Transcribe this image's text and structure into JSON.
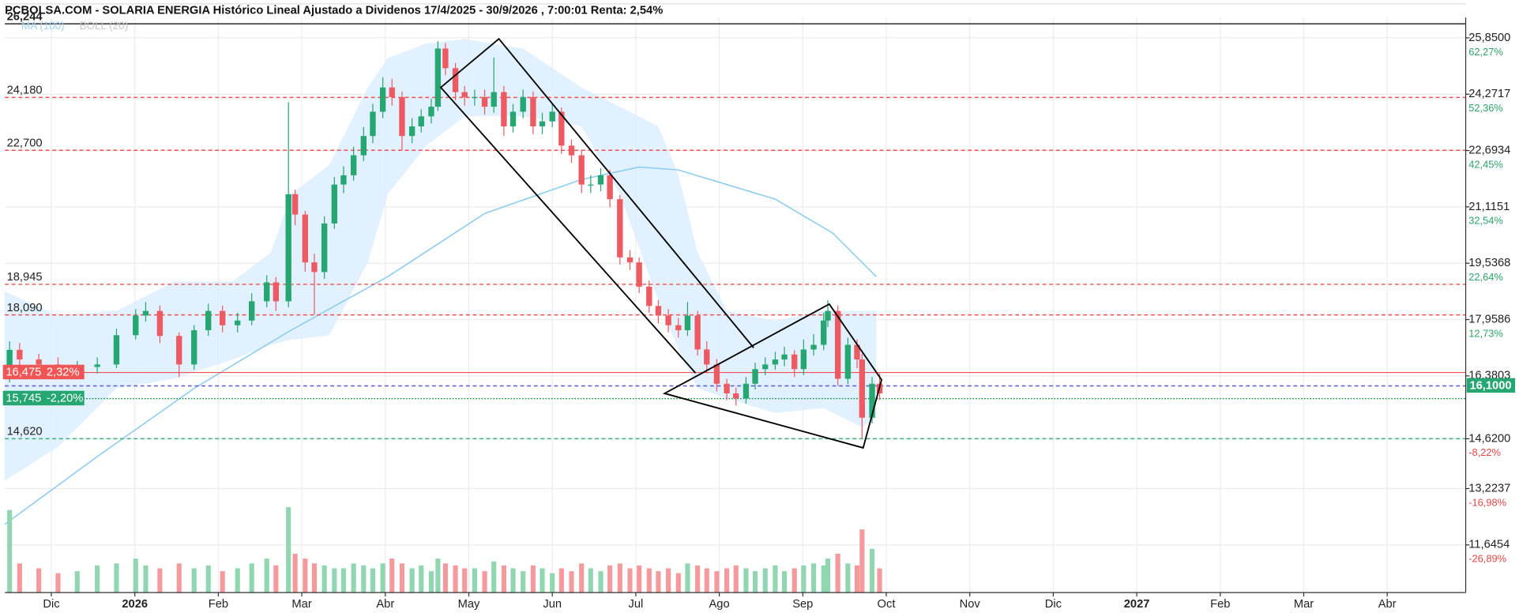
{
  "chart_data": {
    "type": "candlestick",
    "title": "PCBOLSA.COM - SOLARIA ENERGIA Histórico Lineal Ajustado a Dividenos 17/4/2025 - 30/9/2026 , 7:00:01 Renta: 2,54%",
    "indicators": [
      "MA (100)",
      "BOLL (20)"
    ],
    "xlim": [
      -0.557,
      16.94
    ],
    "xticks": [
      {
        "value": 0,
        "label": "Dic"
      },
      {
        "value": 1,
        "label": "2026"
      },
      {
        "value": 2,
        "label": "Feb"
      },
      {
        "value": 3,
        "label": "Mar"
      },
      {
        "value": 4,
        "label": "Abr"
      },
      {
        "value": 5,
        "label": "May"
      },
      {
        "value": 6,
        "label": "Jun"
      },
      {
        "value": 7,
        "label": "Jul"
      },
      {
        "value": 8,
        "label": "Ago"
      },
      {
        "value": 9,
        "label": "Sep"
      },
      {
        "value": 10,
        "label": "Oct"
      },
      {
        "value": 11,
        "label": "Nov"
      },
      {
        "value": 12,
        "label": "Dic"
      },
      {
        "value": 13,
        "label": "2027"
      },
      {
        "value": 14,
        "label": "Feb"
      },
      {
        "value": 15,
        "label": "Mar"
      },
      {
        "value": 16,
        "label": "Abr"
      }
    ],
    "ylim": [
      10.31,
      26.42
    ],
    "yticks": [
      {
        "value": 25.85,
        "label": "25,8500"
      },
      {
        "value": 24.2717,
        "label": "24,2717"
      },
      {
        "value": 22.6934,
        "label": "22,6934"
      },
      {
        "value": 21.1151,
        "label": "21,1151"
      },
      {
        "value": 19.5368,
        "label": "19,5368"
      },
      {
        "value": 17.9586,
        "label": "17,9586"
      },
      {
        "value": 16.3803,
        "label": "16,3803"
      },
      {
        "value": 14.62,
        "label": "14,6200"
      },
      {
        "value": 13.2237,
        "label": "13,2237"
      },
      {
        "value": 11.6454,
        "label": "11,6454"
      }
    ],
    "ytick_changes": [
      "62,27%",
      "52,36%",
      "42,45%",
      "32,54%",
      "22,64%",
      "12,73%",
      null,
      "-8,22%",
      "-16,98%",
      "-26,89%"
    ],
    "grid": true,
    "up_color": "#26a671",
    "down_color": "#ee5a62",
    "x": [
      -0.5,
      -0.38,
      -0.15,
      0.08,
      0.31,
      0.55,
      0.78,
      1.01,
      1.13,
      1.3,
      1.53,
      1.71,
      1.88,
      2.05,
      2.23,
      2.4,
      2.58,
      2.69,
      2.84,
      2.92,
      3.04,
      3.15,
      3.27,
      3.39,
      3.5,
      3.62,
      3.74,
      3.85,
      3.97,
      4.08,
      4.2,
      4.32,
      4.43,
      4.55,
      4.63,
      4.72,
      4.84,
      4.95,
      5.07,
      5.19,
      5.3,
      5.42,
      5.53,
      5.65,
      5.77,
      5.88,
      6.0,
      6.11,
      6.23,
      6.35,
      6.46,
      6.58,
      6.69,
      6.81,
      6.93,
      7.04,
      7.16,
      7.27,
      7.39,
      7.51,
      7.62,
      7.74,
      7.85,
      7.97,
      8.09,
      8.2,
      8.32,
      8.43,
      8.55,
      8.67,
      8.78,
      8.9,
      9.01,
      9.13,
      9.25,
      9.3,
      9.42,
      9.54,
      9.65,
      9.71,
      9.83,
      9.92
    ],
    "open": [
      16.4,
      17.11,
      16.84,
      16.7,
      16.57,
      16.63,
      16.7,
      17.52,
      18.07,
      18.2,
      17.5,
      16.7,
      17.66,
      18.2,
      17.8,
      17.93,
      18.47,
      19.0,
      18.47,
      21.47,
      20.9,
      19.56,
      19.29,
      20.65,
      21.74,
      22.0,
      22.56,
      23.1,
      23.78,
      24.46,
      24.19,
      23.1,
      23.37,
      23.65,
      23.92,
      25.55,
      25.0,
      24.33,
      24.19,
      24.19,
      23.92,
      24.33,
      23.37,
      23.78,
      24.19,
      23.37,
      23.51,
      23.78,
      22.83,
      22.56,
      21.74,
      21.74,
      22.0,
      21.33,
      19.7,
      19.56,
      18.88,
      18.34,
      18.07,
      17.8,
      17.66,
      18.07,
      17.12,
      16.7,
      16.16,
      15.89,
      15.75,
      16.16,
      16.57,
      16.7,
      16.84,
      16.98,
      16.57,
      17.12,
      17.25,
      17.93,
      18.2,
      16.3,
      17.25,
      16.84,
      15.21,
      16.16
    ],
    "high": [
      17.35,
      17.3,
      17.0,
      16.9,
      16.8,
      16.9,
      17.7,
      18.25,
      18.45,
      18.35,
      17.6,
      17.8,
      18.4,
      18.35,
      18.15,
      18.7,
      19.2,
      19.15,
      24.05,
      21.6,
      21.0,
      19.8,
      20.85,
      21.95,
      22.25,
      22.8,
      23.35,
      24.0,
      24.75,
      24.7,
      24.35,
      23.6,
      23.85,
      24.15,
      25.75,
      25.7,
      25.15,
      24.5,
      24.4,
      24.4,
      25.3,
      24.5,
      24.0,
      24.4,
      24.35,
      23.75,
      24.0,
      23.9,
      23.0,
      22.7,
      22.0,
      22.2,
      22.15,
      21.45,
      19.9,
      19.7,
      19.05,
      18.5,
      18.25,
      18.0,
      18.45,
      18.2,
      17.35,
      16.85,
      16.3,
      16.05,
      16.35,
      16.75,
      16.9,
      17.05,
      17.2,
      17.1,
      17.4,
      17.55,
      18.15,
      18.5,
      18.35,
      17.45,
      17.4,
      17.0,
      16.35,
      16.45
    ],
    "low": [
      16.2,
      16.65,
      16.5,
      16.4,
      16.4,
      16.45,
      16.6,
      17.4,
      17.9,
      17.3,
      16.35,
      16.55,
      17.5,
      17.6,
      17.6,
      17.8,
      18.3,
      18.2,
      18.3,
      20.6,
      19.3,
      18.1,
      19.1,
      20.5,
      21.5,
      21.85,
      22.4,
      22.9,
      23.6,
      23.95,
      22.7,
      22.9,
      23.2,
      23.45,
      23.8,
      24.8,
      24.1,
      23.95,
      23.95,
      23.7,
      23.75,
      23.1,
      23.2,
      23.6,
      23.15,
      23.15,
      23.35,
      22.6,
      22.35,
      21.5,
      21.5,
      21.55,
      21.1,
      19.5,
      19.35,
      18.7,
      18.15,
      17.85,
      17.6,
      17.45,
      17.5,
      16.95,
      16.45,
      15.95,
      15.7,
      15.55,
      15.6,
      16.0,
      16.4,
      16.55,
      16.65,
      16.35,
      16.4,
      16.95,
      17.1,
      17.75,
      16.1,
      16.15,
      16.6,
      14.62,
      15.05,
      15.7
    ],
    "close": [
      17.11,
      16.84,
      16.7,
      16.57,
      16.63,
      16.7,
      17.52,
      18.07,
      18.2,
      17.5,
      16.7,
      17.66,
      18.2,
      17.8,
      17.93,
      18.47,
      19.0,
      18.47,
      21.47,
      20.9,
      19.56,
      19.29,
      20.65,
      21.74,
      22.0,
      22.56,
      23.1,
      23.78,
      24.46,
      24.19,
      23.1,
      23.37,
      23.65,
      23.92,
      25.55,
      25.0,
      24.33,
      24.19,
      24.19,
      23.92,
      24.33,
      23.37,
      23.78,
      24.19,
      23.37,
      23.51,
      23.78,
      22.83,
      22.56,
      21.74,
      21.74,
      22.0,
      21.33,
      19.7,
      19.56,
      18.88,
      18.34,
      18.07,
      17.8,
      17.66,
      18.07,
      17.12,
      16.7,
      16.16,
      15.89,
      15.75,
      16.16,
      16.57,
      16.7,
      16.84,
      16.98,
      16.57,
      17.12,
      17.25,
      17.93,
      18.2,
      16.3,
      17.25,
      16.84,
      15.21,
      16.16,
      15.89
    ],
    "volume": {
      "ylim": [
        0,
        100
      ],
      "up_color": "#8fd6b1",
      "down_color": "#f4999c",
      "values": [
        85,
        30,
        25,
        20,
        22,
        28,
        30,
        35,
        28,
        25,
        30,
        25,
        28,
        22,
        25,
        30,
        35,
        28,
        88,
        40,
        35,
        30,
        28,
        25,
        25,
        30,
        28,
        25,
        30,
        35,
        30,
        25,
        28,
        22,
        35,
        30,
        28,
        25,
        25,
        22,
        32,
        28,
        25,
        22,
        28,
        25,
        20,
        25,
        22,
        30,
        25,
        22,
        28,
        30,
        25,
        28,
        25,
        22,
        25,
        20,
        30,
        28,
        25,
        22,
        25,
        28,
        25,
        22,
        25,
        28,
        22,
        25,
        28,
        30,
        28,
        35,
        40,
        30,
        28,
        65,
        45,
        25
      ]
    },
    "ma": {
      "color": "#8ecdf0",
      "x": [
        -0.56,
        0.55,
        1.71,
        2.87,
        4.03,
        5.19,
        6.35,
        7.04,
        7.51,
        8.67,
        9.36,
        9.88
      ],
      "values": [
        12.22,
        14.12,
        16.03,
        17.66,
        19.16,
        20.93,
        21.88,
        22.23,
        22.15,
        21.33,
        20.38,
        19.16
      ]
    },
    "bollinger": {
      "color": "#dcefff",
      "x": [
        -0.56,
        0.08,
        0.78,
        1.47,
        2.17,
        2.63,
        2.87,
        3.33,
        3.79,
        4.03,
        4.49,
        4.95,
        5.65,
        6.35,
        6.81,
        7.27,
        7.51,
        7.74,
        8.09,
        8.67,
        9.25,
        9.71,
        9.88
      ],
      "upper": [
        18.75,
        18.07,
        18.2,
        19.02,
        19.02,
        19.84,
        21.47,
        22.29,
        24.46,
        25.28,
        25.69,
        25.82,
        25.55,
        24.46,
        23.92,
        23.37,
        22.01,
        19.84,
        18.2,
        17.93,
        18.2,
        18.2,
        18.2
      ],
      "lower": [
        13.44,
        14.39,
        16.03,
        16.3,
        16.84,
        17.25,
        17.39,
        17.52,
        19.56,
        21.47,
        22.83,
        23.65,
        23.65,
        23.37,
        21.47,
        18.48,
        17.12,
        16.03,
        15.75,
        15.34,
        15.48,
        14.94,
        15.21
      ]
    },
    "levels": [
      {
        "value": 26.244,
        "label": "26,244",
        "color": "#000000",
        "dash": "solid"
      },
      {
        "value": 24.18,
        "label": "24,180",
        "color": "#f05050",
        "dash": "dashed"
      },
      {
        "value": 22.7,
        "label": "22,700",
        "color": "#f05050",
        "dash": "dashed"
      },
      {
        "value": 18.945,
        "label": "18,945",
        "color": "#f05050",
        "dash": "dashed"
      },
      {
        "value": 18.09,
        "label": "18,090",
        "color": "#f05050",
        "dash": "dashed"
      },
      {
        "value": 16.475,
        "label": "16,475",
        "change": "2,32%",
        "color": "#f05050",
        "dash": "solid",
        "box": "#f25555"
      },
      {
        "value": 15.745,
        "label": "15,745",
        "change": "-2,20%",
        "color": "#1f8f4f",
        "dash": "dotted",
        "box": "#26a671"
      },
      {
        "value": 14.62,
        "label": "14,620",
        "color": "#3bb07a",
        "dash": "dashed"
      }
    ],
    "last_price": {
      "value": 16.1,
      "label": "16,1000",
      "line_color": "#5b5bd6",
      "box_color": "#26a671"
    }
  }
}
